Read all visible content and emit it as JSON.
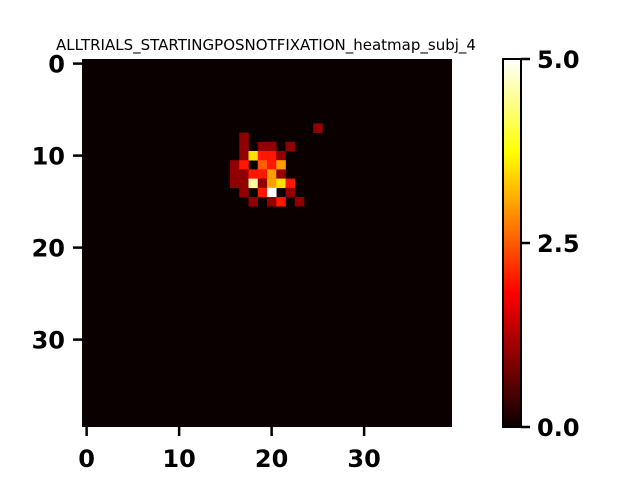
{
  "chart_data": {
    "type": "heatmap",
    "title": "ALLTRIALS_STARTINGPOSNOTFIXATION_heatmap_subj_4",
    "xlabel": "",
    "ylabel": "",
    "grid": false,
    "colormap": "hot",
    "x_range": [
      -0.5,
      39.5
    ],
    "y_range": [
      -0.5,
      39.5
    ],
    "y_inverted": true,
    "x_ticks": [
      0,
      10,
      20,
      30
    ],
    "x_tick_labels": [
      "0",
      "10",
      "20",
      "30"
    ],
    "y_ticks": [
      0,
      10,
      20,
      30
    ],
    "y_tick_labels": [
      "0",
      "10",
      "20",
      "30"
    ],
    "colorbar": {
      "range": [
        0,
        5
      ],
      "ticks": [
        0,
        2.5,
        5
      ],
      "tick_labels": [
        "0.0",
        "2.5",
        "5.0"
      ],
      "placement": "right"
    },
    "background_value": 0,
    "cells": [
      {
        "x": 25,
        "y": 7,
        "value": 1.0
      },
      {
        "x": 17,
        "y": 8,
        "value": 1.0
      },
      {
        "x": 17,
        "y": 9,
        "value": 1.0
      },
      {
        "x": 19,
        "y": 9,
        "value": 1.0
      },
      {
        "x": 20,
        "y": 9,
        "value": 1.0
      },
      {
        "x": 22,
        "y": 9,
        "value": 1.0
      },
      {
        "x": 17,
        "y": 10,
        "value": 1.0
      },
      {
        "x": 18,
        "y": 10,
        "value": 3.5
      },
      {
        "x": 19,
        "y": 10,
        "value": 2.0
      },
      {
        "x": 20,
        "y": 10,
        "value": 2.0
      },
      {
        "x": 21,
        "y": 10,
        "value": 1.0
      },
      {
        "x": 16,
        "y": 11,
        "value": 1.0
      },
      {
        "x": 17,
        "y": 11,
        "value": 2.0
      },
      {
        "x": 19,
        "y": 11,
        "value": 2.5
      },
      {
        "x": 20,
        "y": 11,
        "value": 2.0
      },
      {
        "x": 21,
        "y": 11,
        "value": 3.0
      },
      {
        "x": 16,
        "y": 12,
        "value": 1.0
      },
      {
        "x": 17,
        "y": 12,
        "value": 1.0
      },
      {
        "x": 18,
        "y": 12,
        "value": 2.0
      },
      {
        "x": 19,
        "y": 12,
        "value": 2.0
      },
      {
        "x": 20,
        "y": 12,
        "value": 3.0
      },
      {
        "x": 21,
        "y": 12,
        "value": 1.0
      },
      {
        "x": 16,
        "y": 13,
        "value": 1.0
      },
      {
        "x": 17,
        "y": 13,
        "value": 1.0
      },
      {
        "x": 18,
        "y": 13,
        "value": 4.5
      },
      {
        "x": 19,
        "y": 13,
        "value": 1.0
      },
      {
        "x": 20,
        "y": 13,
        "value": 3.0
      },
      {
        "x": 21,
        "y": 13,
        "value": 3.5
      },
      {
        "x": 22,
        "y": 13,
        "value": 2.0
      },
      {
        "x": 17,
        "y": 14,
        "value": 1.0
      },
      {
        "x": 19,
        "y": 14,
        "value": 2.0
      },
      {
        "x": 20,
        "y": 14,
        "value": 5.0
      },
      {
        "x": 22,
        "y": 14,
        "value": 1.0
      },
      {
        "x": 18,
        "y": 15,
        "value": 1.0
      },
      {
        "x": 20,
        "y": 15,
        "value": 1.0
      },
      {
        "x": 21,
        "y": 15,
        "value": 2.0
      },
      {
        "x": 23,
        "y": 15,
        "value": 1.0
      }
    ]
  }
}
